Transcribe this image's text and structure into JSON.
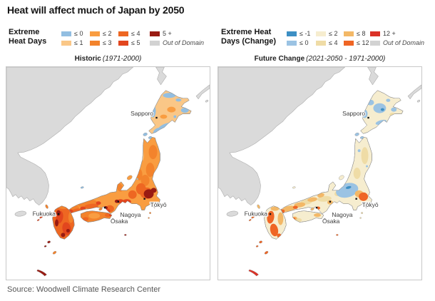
{
  "title": "Heat will affect much of Japan by 2050",
  "source": "Source: Woodwell Climate Research Center",
  "legend_historic": {
    "title_lines": [
      "Extreme",
      "Heat Days"
    ],
    "items": [
      {
        "label": "≤ 0",
        "color": "#92BEE1"
      },
      {
        "label": "≤ 1",
        "color": "#FAC787"
      },
      {
        "label": "≤ 2",
        "color": "#F99D41"
      },
      {
        "label": "≤ 3",
        "color": "#F3832C"
      },
      {
        "label": "≤ 4",
        "color": "#EE6722"
      },
      {
        "label": "≤ 5",
        "color": "#E2461E"
      },
      {
        "label": "5 +",
        "color": "#991B12"
      },
      {
        "label": "Out of Domain",
        "color": "#D2D2D2",
        "italic": true
      }
    ]
  },
  "legend_future": {
    "title_lines": [
      "Extreme Heat",
      "Days (Change)"
    ],
    "items": [
      {
        "label": "≤ -1",
        "color": "#3D8FC4"
      },
      {
        "label": "≤ 0",
        "color": "#9BC3E3"
      },
      {
        "label": "≤ 2",
        "color": "#F6EDCF"
      },
      {
        "label": "≤ 4",
        "color": "#EFDCA6"
      },
      {
        "label": "≤ 8",
        "color": "#F3B867"
      },
      {
        "label": "≤ 12",
        "color": "#EF6524"
      },
      {
        "label": "12 +",
        "color": "#DB3227"
      },
      {
        "label": "Out of Domain",
        "color": "#D2D2D2",
        "italic": true
      }
    ]
  },
  "panels": [
    {
      "key": "historic",
      "title": "Historic",
      "subtitle": "(1971-2000)"
    },
    {
      "key": "future",
      "title": "Future Change",
      "subtitle": "(2021-2050 - 1971-2000)"
    }
  ],
  "map": {
    "cities": [
      "Sapporo",
      "Fukuoka",
      "Ōsaka",
      "Nagoya",
      "Tōkyō"
    ],
    "out_of_domain_color": "#DADADA",
    "coastline_color": "#8A8A8A",
    "domain_border_color": "#ADADAD",
    "sea_color": "#FFFFFF",
    "city_dot_color": "#141414",
    "city_label_color": "#3C3C3C"
  }
}
